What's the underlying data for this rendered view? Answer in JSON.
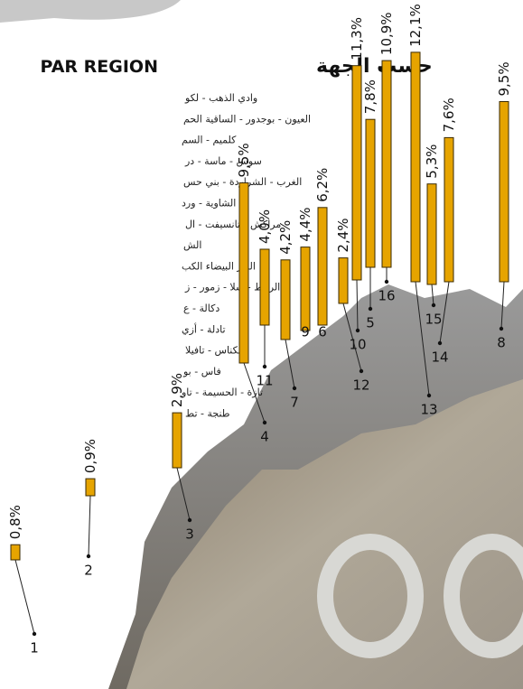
{
  "chart_data": {
    "type": "bar",
    "title": "PAR REGION",
    "subtitle": "حسب الجهة",
    "regions": [
      "وادي الذهب - لكو",
      "العيون - بوجدور - الساقية الحم",
      "كلميم - السم",
      "سوس - ماسة - در",
      "الغرب - الشراردة - بني حس",
      "الشاوية - ورد",
      "مراكش - تانسيفت - ال",
      "الش",
      "الدار البيضاء الكب",
      "الرباط - سلا - زمور - ز",
      "دكالة - ع",
      "تادلة - أزي",
      "مكناس - تافيلا",
      "فاس - بو",
      "تازة - الحسيمة - تاو",
      "طنجة - تط"
    ],
    "categories": [
      "1",
      "2",
      "3",
      "4",
      "5",
      "6",
      "7",
      "8",
      "9",
      "10",
      "11",
      "12",
      "13",
      "14",
      "15",
      "16"
    ],
    "values": [
      0.8,
      0.9,
      2.9,
      9.5,
      7.8,
      6.2,
      4.2,
      9.5,
      4.4,
      11.3,
      4.0,
      2.4,
      12.1,
      7.6,
      5.3,
      10.9
    ],
    "value_labels": [
      "0,8%",
      "0,9%",
      "2,9%",
      "9,5%",
      "7,8%",
      "6,2%",
      "4,2%",
      "9,5%",
      "4,4%",
      "11,3%",
      "4,0%",
      "2,4%",
      "12,1%",
      "7,6%",
      "5,3%",
      "10,9%"
    ],
    "color": "#e6a400"
  }
}
